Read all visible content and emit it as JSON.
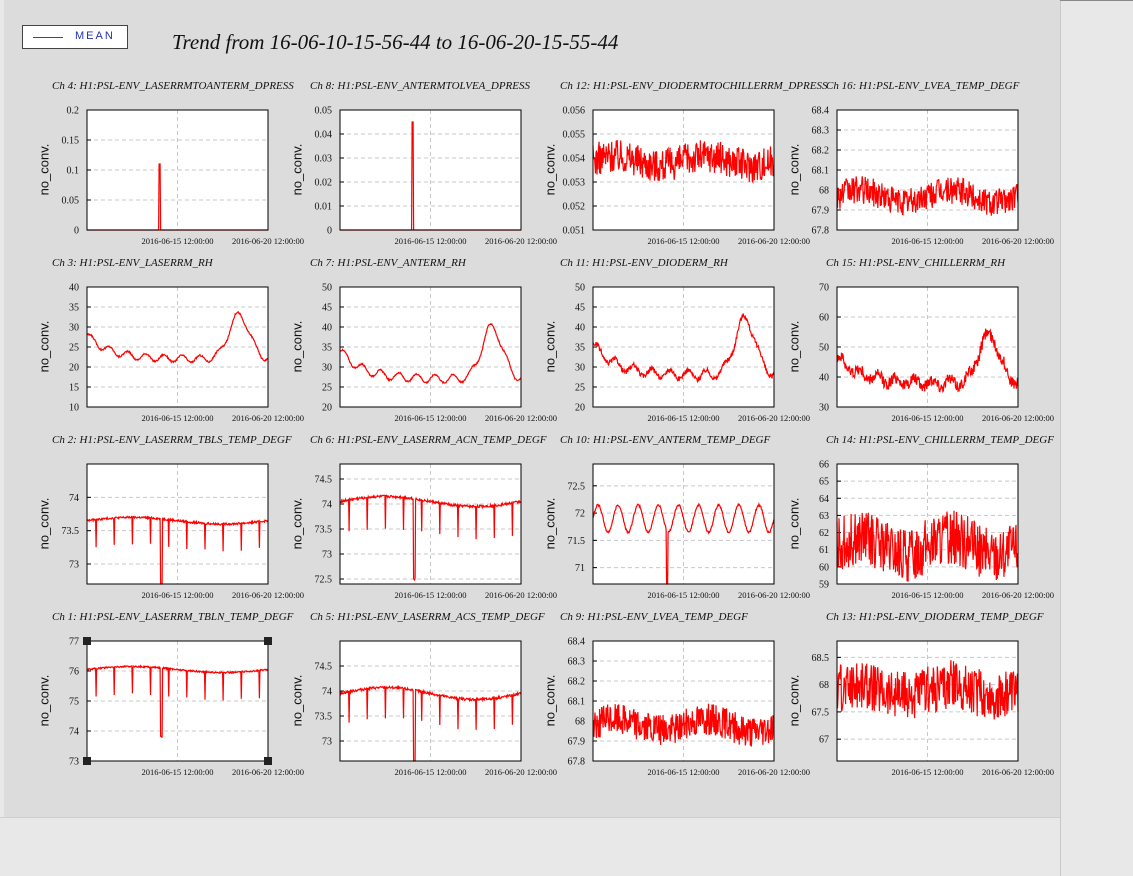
{
  "legend": {
    "label": "MEAN",
    "color": "#ff0000"
  },
  "title": "Trend from 16-06-10-15-56-44 to 16-06-20-15-55-44",
  "xtick_labels": [
    "2016-06-15 12:00:00",
    "2016-06-20 12:00:00"
  ],
  "chart_data": [
    {
      "type": "line",
      "title": "Ch 4: H1:PSL-ENV_LASERRMTOANTERM_DPRESS",
      "ylabel": "no_conv.",
      "ylim": [
        0,
        0.2
      ],
      "yticks": [
        "0",
        "0.05",
        "0.1",
        "0.15",
        "0.2"
      ],
      "grid": true,
      "pattern": "spike",
      "base": 0.0,
      "amp": 0.11,
      "noise": 0,
      "spike_at": 0.4
    },
    {
      "type": "line",
      "title": "Ch 8: H1:PSL-ENV_ANTERMTOLVEA_DPRESS",
      "ylabel": "no_conv.",
      "ylim": [
        0,
        0.05
      ],
      "yticks": [
        "0",
        "0.01",
        "0.02",
        "0.03",
        "0.04",
        "0.05"
      ],
      "grid": true,
      "pattern": "spike",
      "base": 0.0,
      "amp": 0.045,
      "noise": 0,
      "spike_at": 0.4
    },
    {
      "type": "line",
      "title": "Ch 12: H1:PSL-ENV_DIODERMTOCHILLERRM_DPRESS",
      "ylabel": "no_conv.",
      "ylim": [
        0.051,
        0.056
      ],
      "yticks": [
        "0.051",
        "0.052",
        "0.053",
        "0.054",
        "0.055",
        "0.056"
      ],
      "grid": true,
      "pattern": "noisy",
      "base": 0.0539,
      "amp": 0.0002,
      "noise": 0.0014
    },
    {
      "type": "line",
      "title": "Ch 16: H1:PSL-ENV_LVEA_TEMP_DEGF",
      "ylabel": "no_conv.",
      "ylim": [
        67.8,
        68.4
      ],
      "yticks": [
        "67.8",
        "67.9",
        "68",
        "68.1",
        "68.2",
        "68.3",
        "68.4"
      ],
      "grid": true,
      "pattern": "noisy",
      "base": 67.97,
      "amp": 0.03,
      "noise": 0.14
    },
    {
      "type": "line",
      "title": "Ch 3: H1:PSL-ENV_LASERRM_RH",
      "ylabel": "no_conv.",
      "ylim": [
        10,
        40
      ],
      "yticks": [
        "10",
        "15",
        "20",
        "25",
        "30",
        "35",
        "40"
      ],
      "grid": true,
      "pattern": "rh",
      "base": 22,
      "amp": 11,
      "noise": 0.4
    },
    {
      "type": "line",
      "title": "Ch 7: H1:PSL-ENV_ANTERM_RH",
      "ylabel": "no_conv.",
      "ylim": [
        20,
        50
      ],
      "yticks": [
        "20",
        "25",
        "30",
        "35",
        "40",
        "45",
        "50"
      ],
      "grid": true,
      "pattern": "rh",
      "base": 27,
      "amp": 13,
      "noise": 0.4
    },
    {
      "type": "line",
      "title": "Ch 11: H1:PSL-ENV_DIODERM_RH",
      "ylabel": "no_conv.",
      "ylim": [
        20,
        50
      ],
      "yticks": [
        "20",
        "25",
        "30",
        "35",
        "40",
        "45",
        "50"
      ],
      "grid": true,
      "pattern": "rh",
      "base": 28,
      "amp": 14,
      "noise": 1.2
    },
    {
      "type": "line",
      "title": "Ch 15: H1:PSL-ENV_CHILLERRM_RH",
      "ylabel": "no_conv.",
      "ylim": [
        30,
        70
      ],
      "yticks": [
        "30",
        "40",
        "50",
        "60",
        "70"
      ],
      "grid": true,
      "pattern": "rh",
      "base": 38,
      "amp": 16,
      "noise": 4
    },
    {
      "type": "line",
      "title": "Ch 2: H1:PSL-ENV_LASERRM_TBLS_TEMP_DEGF",
      "ylabel": "no_conv.",
      "ylim": [
        72.7,
        74.5
      ],
      "yticks": [
        "73",
        "73.5",
        "74"
      ],
      "grid": true,
      "pattern": "daily_dip",
      "base": 73.65,
      "amp": 0.05,
      "noise": 0.03,
      "dip": 1.0
    },
    {
      "type": "line",
      "title": "Ch 6: H1:PSL-ENV_LASERRM_ACN_TEMP_DEGF",
      "ylabel": "no_conv.",
      "ylim": [
        72.4,
        74.8
      ],
      "yticks": [
        "72.5",
        "73",
        "73.5",
        "74",
        "74.5"
      ],
      "grid": true,
      "pattern": "daily_dip",
      "base": 74.05,
      "amp": 0.1,
      "noise": 0.05,
      "dip": 1.6
    },
    {
      "type": "line",
      "title": "Ch 10: H1:PSL-ENV_ANTERM_TEMP_DEGF",
      "ylabel": "no_conv.",
      "ylim": [
        70.7,
        72.9
      ],
      "yticks": [
        "71",
        "71.5",
        "72",
        "72.5"
      ],
      "grid": true,
      "pattern": "wave",
      "base": 71.9,
      "amp": 0.25,
      "noise": 0.04,
      "dip": 1.2
    },
    {
      "type": "line",
      "title": "Ch 14: H1:PSL-ENV_CHILLERRM_TEMP_DEGF",
      "ylabel": "no_conv.",
      "ylim": [
        59,
        66
      ],
      "yticks": [
        "59",
        "60",
        "61",
        "62",
        "63",
        "64",
        "65",
        "66"
      ],
      "grid": true,
      "pattern": "noisy",
      "base": 61.2,
      "amp": 0.5,
      "noise": 3.2
    },
    {
      "type": "line",
      "title": "Ch 1: H1:PSL-ENV_LASERRM_TBLN_TEMP_DEGF",
      "ylabel": "no_conv.",
      "ylim": [
        73,
        77
      ],
      "yticks": [
        "73",
        "74",
        "75",
        "76",
        "77"
      ],
      "grid": true,
      "pattern": "daily_dip",
      "base": 76.05,
      "amp": 0.1,
      "noise": 0.05,
      "dip": 2.3
    },
    {
      "type": "line",
      "title": "Ch 5: H1:PSL-ENV_LASERRM_ACS_TEMP_DEGF",
      "ylabel": "no_conv.",
      "ylim": [
        72.6,
        75
      ],
      "yticks": [
        "73",
        "73.5",
        "74",
        "74.5"
      ],
      "grid": true,
      "pattern": "daily_dip",
      "base": 73.95,
      "amp": 0.12,
      "noise": 0.05,
      "dip": 1.5
    },
    {
      "type": "line",
      "title": "Ch 9: H1:PSL-ENV_LVEA_TEMP_DEGF",
      "ylabel": "no_conv.",
      "ylim": [
        67.8,
        68.4
      ],
      "yticks": [
        "67.8",
        "67.9",
        "68",
        "68.1",
        "68.2",
        "68.3",
        "68.4"
      ],
      "grid": true,
      "pattern": "noisy",
      "base": 67.98,
      "amp": 0.03,
      "noise": 0.16
    },
    {
      "type": "line",
      "title": "Ch 13: H1:PSL-ENV_DIODERM_TEMP_DEGF",
      "ylabel": "no_conv.",
      "ylim": [
        66.6,
        68.8
      ],
      "yticks": [
        "67",
        "67.5",
        "68",
        "68.5"
      ],
      "grid": true,
      "pattern": "noisy",
      "base": 67.9,
      "amp": 0.1,
      "noise": 0.9
    }
  ]
}
